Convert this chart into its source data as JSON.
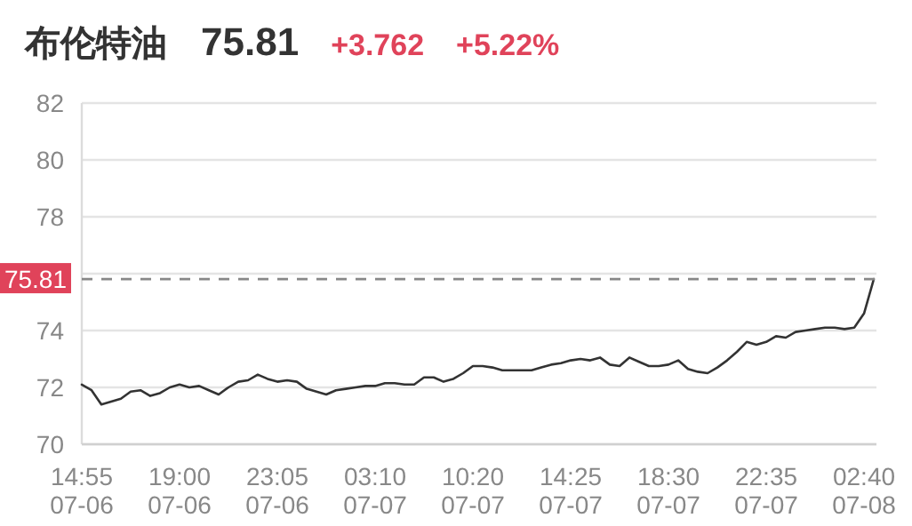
{
  "chart_data": {
    "type": "line",
    "title": "布伦特油",
    "annotations": [
      "75.81",
      "+3.762",
      "+5.22%"
    ],
    "categories": [
      "14:55 07-06",
      null,
      null,
      null,
      null,
      null,
      null,
      null,
      null,
      null,
      "19:00 07-06",
      null,
      null,
      null,
      null,
      null,
      null,
      null,
      null,
      null,
      "23:05 07-06",
      null,
      null,
      null,
      null,
      null,
      null,
      null,
      null,
      null,
      "03:10 07-07",
      null,
      null,
      null,
      null,
      null,
      null,
      null,
      null,
      null,
      "10:20 07-07",
      null,
      null,
      null,
      null,
      null,
      null,
      null,
      null,
      null,
      "14:25 07-07",
      null,
      null,
      null,
      null,
      null,
      null,
      null,
      null,
      null,
      "18:30 07-07",
      null,
      null,
      null,
      null,
      null,
      null,
      null,
      null,
      null,
      "22:35 07-07",
      null,
      null,
      null,
      null,
      null,
      null,
      null,
      null,
      null,
      "02:40 07-08",
      null
    ],
    "series": [
      {
        "color": "#333333",
        "values": [
          72.1,
          71.9,
          71.4,
          71.5,
          71.6,
          71.85,
          71.9,
          71.7,
          71.8,
          72.0,
          72.1,
          72.0,
          72.05,
          71.9,
          71.75,
          72.0,
          72.2,
          72.25,
          72.45,
          72.3,
          72.2,
          72.25,
          72.2,
          71.95,
          71.85,
          71.75,
          71.9,
          71.95,
          72.0,
          72.05,
          72.05,
          72.15,
          72.15,
          72.1,
          72.1,
          72.35,
          72.35,
          72.2,
          72.3,
          72.5,
          72.75,
          72.75,
          72.7,
          72.6,
          72.6,
          72.6,
          72.6,
          72.7,
          72.8,
          72.85,
          72.95,
          73.0,
          72.95,
          73.05,
          72.8,
          72.75,
          73.05,
          72.9,
          72.75,
          72.75,
          72.8,
          72.95,
          72.65,
          72.55,
          72.5,
          72.7,
          72.95,
          73.25,
          73.6,
          73.5,
          73.6,
          73.8,
          73.75,
          73.95,
          74.0,
          74.05,
          74.1,
          74.1,
          74.05,
          74.1,
          74.6,
          75.81
        ]
      }
    ],
    "ylim": [
      70,
      82
    ],
    "yticks": [
      70,
      72,
      74,
      {
        "value": 76,
        "label": null
      },
      78,
      80,
      82
    ],
    "grid": "y",
    "marker": "none",
    "line_style": "solid",
    "ref_lines": [
      {
        "axis": "y",
        "value": 75.81,
        "label": "75.81",
        "color": "#888888",
        "line_style": "dashed"
      }
    ]
  }
}
